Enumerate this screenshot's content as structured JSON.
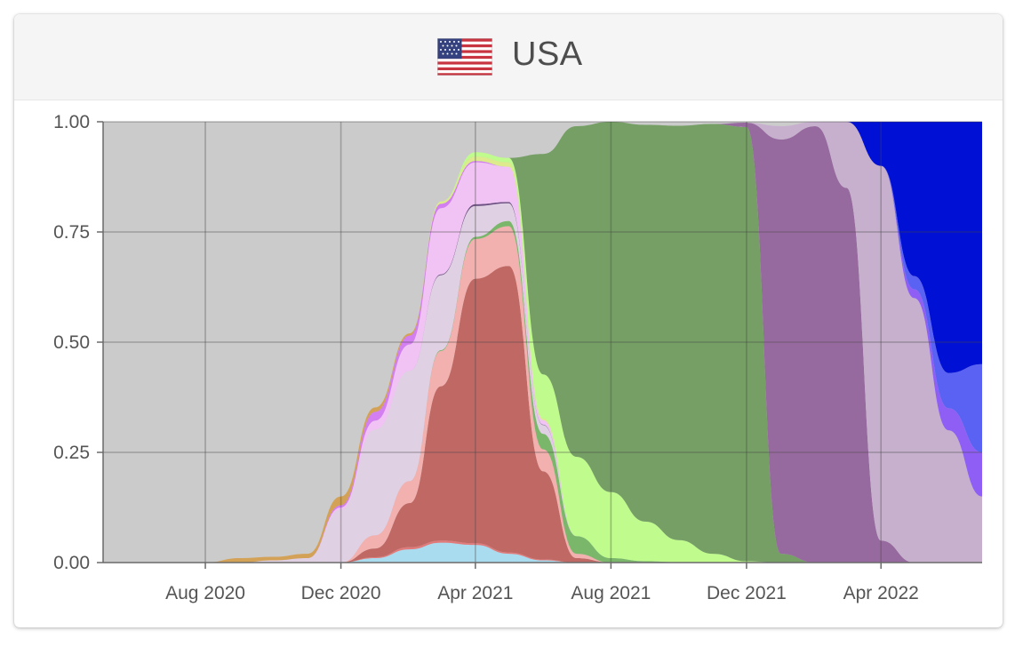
{
  "header": {
    "title": "USA",
    "flag_icon": "us-flag-icon"
  },
  "chart_data": {
    "type": "area",
    "stacked": true,
    "normalized": true,
    "grid": true,
    "title": "USA",
    "xlabel": "",
    "ylabel": "",
    "ylim": [
      0,
      1
    ],
    "xlim": [
      "2020-05-01",
      "2022-07-01"
    ],
    "x_ticks": [
      "Aug 2020",
      "Dec 2020",
      "Apr 2021",
      "Aug 2021",
      "Dec 2021",
      "Apr 2022"
    ],
    "y_ticks": [
      "0.00",
      "0.25",
      "0.50",
      "0.75",
      "1.00"
    ],
    "background_color": "#cbcbcb",
    "x": [
      "2020-08-01",
      "2020-09-01",
      "2020-10-01",
      "2020-11-01",
      "2020-12-01",
      "2021-01-01",
      "2021-02-01",
      "2021-03-01",
      "2021-04-01",
      "2021-05-01",
      "2021-06-01",
      "2021-07-01",
      "2021-08-01",
      "2021-09-01",
      "2021-10-01",
      "2021-11-01",
      "2021-12-01",
      "2022-01-01",
      "2022-02-01",
      "2022-03-01",
      "2022-04-01",
      "2022-05-01",
      "2022-06-01",
      "2022-07-01"
    ],
    "series": [
      {
        "color": "#aadcf0",
        "values": [
          0,
          0,
          0,
          0,
          0,
          0.01,
          0.03,
          0.045,
          0.04,
          0.02,
          0.005,
          0,
          0,
          0,
          0,
          0,
          0,
          0,
          0,
          0,
          0,
          0,
          0,
          0
        ]
      },
      {
        "color": "#e17a7a",
        "values": [
          0,
          0,
          0,
          0,
          0,
          0.002,
          0.005,
          0.005,
          0.004,
          0.003,
          0.002,
          0,
          0,
          0,
          0,
          0,
          0,
          0,
          0,
          0,
          0,
          0,
          0,
          0
        ]
      },
      {
        "color": "#c06964",
        "values": [
          0,
          0,
          0,
          0,
          0,
          0.02,
          0.1,
          0.35,
          0.6,
          0.65,
          0.2,
          0.01,
          0,
          0,
          0,
          0,
          0,
          0,
          0,
          0,
          0,
          0,
          0,
          0
        ]
      },
      {
        "color": "#f2b0ae",
        "values": [
          0,
          0,
          0,
          0,
          0,
          0.03,
          0.05,
          0.08,
          0.09,
          0.09,
          0.05,
          0.01,
          0,
          0,
          0,
          0,
          0,
          0,
          0,
          0,
          0,
          0,
          0,
          0
        ]
      },
      {
        "color": "#7ab76b",
        "values": [
          0,
          0,
          0,
          0,
          0,
          0,
          0,
          0.002,
          0.005,
          0.012,
          0.035,
          0.04,
          0.01,
          0.003,
          0.001,
          0,
          0,
          0,
          0,
          0,
          0,
          0,
          0,
          0
        ]
      },
      {
        "color": "#e0d0e3",
        "values": [
          0,
          0,
          0.005,
          0.01,
          0.12,
          0.24,
          0.25,
          0.17,
          0.07,
          0.04,
          0.02,
          0,
          0,
          0,
          0,
          0,
          0,
          0,
          0,
          0,
          0,
          0,
          0,
          0
        ]
      },
      {
        "color": "#6c4f82",
        "values": [
          0,
          0,
          0,
          0,
          0,
          0,
          0,
          0.002,
          0.004,
          0.003,
          0.001,
          0,
          0,
          0,
          0,
          0,
          0,
          0,
          0,
          0,
          0,
          0,
          0,
          0
        ]
      },
      {
        "color": "#f1c3f5",
        "values": [
          0,
          0,
          0,
          0,
          0.005,
          0.02,
          0.06,
          0.15,
          0.095,
          0.08,
          0.01,
          0,
          0,
          0,
          0,
          0,
          0,
          0,
          0,
          0,
          0,
          0,
          0,
          0
        ]
      },
      {
        "color": "#d47ff1",
        "values": [
          0,
          0,
          0,
          0,
          0.005,
          0.02,
          0.02,
          0.01,
          0.003,
          0,
          0,
          0,
          0,
          0,
          0,
          0,
          0,
          0,
          0,
          0,
          0,
          0,
          0,
          0
        ]
      },
      {
        "color": "#d3a256",
        "values": [
          0,
          0.01,
          0.008,
          0.01,
          0.02,
          0.01,
          0.005,
          0,
          0,
          0,
          0,
          0,
          0,
          0,
          0,
          0,
          0,
          0,
          0,
          0,
          0,
          0,
          0,
          0
        ]
      },
      {
        "color": "#ddeb8c",
        "values": [
          0,
          0,
          0,
          0,
          0,
          0,
          0,
          0.005,
          0.01,
          0.01,
          0.004,
          0,
          0,
          0,
          0,
          0,
          0,
          0,
          0,
          0,
          0,
          0,
          0,
          0
        ]
      },
      {
        "color": "#bffb8d",
        "values": [
          0,
          0,
          0,
          0,
          0,
          0,
          0,
          0,
          0.01,
          0.01,
          0.1,
          0.18,
          0.15,
          0.09,
          0.05,
          0.02,
          0.003,
          0,
          0,
          0,
          0,
          0,
          0,
          0
        ]
      },
      {
        "color": "#759f65",
        "values": [
          0,
          0,
          0,
          0,
          0,
          0,
          0,
          0,
          0,
          0,
          0.5,
          0.75,
          0.84,
          0.9,
          0.94,
          0.975,
          0.985,
          0.02,
          0,
          0,
          0,
          0,
          0,
          0
        ]
      },
      {
        "color": "#976a9f",
        "values": [
          0,
          0,
          0,
          0,
          0,
          0,
          0,
          0,
          0,
          0,
          0,
          0,
          0,
          0,
          0,
          0,
          0.01,
          0.94,
          0.99,
          0.85,
          0.05,
          0,
          0,
          0
        ]
      },
      {
        "color": "#c7b0cd",
        "values": [
          0,
          0,
          0,
          0,
          0,
          0,
          0,
          0,
          0,
          0,
          0,
          0,
          0,
          0,
          0,
          0,
          0,
          0.03,
          0.01,
          0.15,
          0.85,
          0.6,
          0.3,
          0.15
        ]
      },
      {
        "color": "#8f5ff5",
        "values": [
          0,
          0,
          0,
          0,
          0,
          0,
          0,
          0,
          0,
          0,
          0,
          0,
          0,
          0,
          0,
          0,
          0,
          0,
          0,
          0,
          0,
          0.02,
          0.05,
          0.1
        ]
      },
      {
        "color": "#5962f2",
        "values": [
          0,
          0,
          0,
          0,
          0,
          0,
          0,
          0,
          0,
          0,
          0,
          0,
          0,
          0,
          0,
          0,
          0,
          0,
          0,
          0,
          0,
          0.03,
          0.08,
          0.2
        ]
      },
      {
        "color": "#0010d4",
        "values": [
          0,
          0,
          0,
          0,
          0,
          0,
          0,
          0,
          0,
          0,
          0,
          0,
          0,
          0,
          0,
          0,
          0,
          0,
          0,
          0,
          0.1,
          0.35,
          0.57,
          0.55
        ]
      }
    ]
  }
}
